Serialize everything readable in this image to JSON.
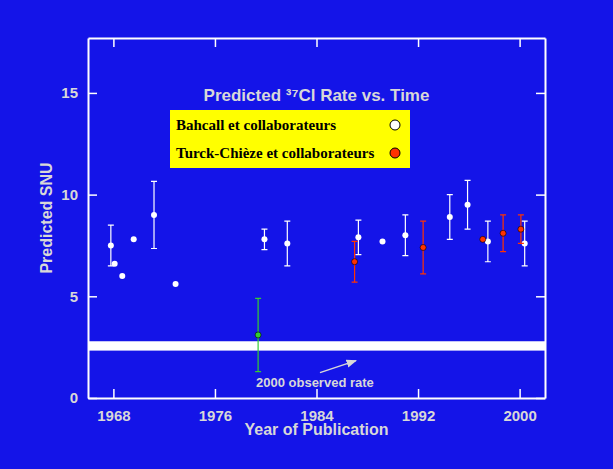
{
  "chart_data": {
    "type": "scatter",
    "title": "Predicted ³⁷Cl Rate vs. Time",
    "x_label": "Year of Publication",
    "y_label": "Predicted SNU",
    "xlim": [
      1966,
      2002
    ],
    "ylim": [
      0,
      17.7
    ],
    "xticks": [
      1968,
      1976,
      1984,
      1992,
      2000
    ],
    "yticks": [
      0,
      5,
      10,
      15
    ],
    "legend": "upper-left",
    "series": [
      {
        "name": "Bahcall et collaborateurs",
        "color": "#ffffff",
        "marker": "circle",
        "x": [
          1967.8,
          1968.1,
          1968.7,
          1969.6,
          1971.2,
          1972.9,
          1979.9,
          1981.7,
          1987.3,
          1989.2,
          1991.0,
          1994.5,
          1995.9,
          1997.5,
          2000.4
        ],
        "values": [
          7.5,
          6.6,
          6.0,
          7.8,
          9.0,
          5.6,
          7.8,
          7.6,
          7.9,
          7.7,
          8.0,
          8.9,
          9.5,
          7.7,
          7.6
        ],
        "errors": [
          1.0,
          null,
          null,
          null,
          1.65,
          null,
          0.5,
          1.1,
          0.85,
          null,
          1.0,
          1.1,
          1.2,
          1.0,
          1.1
        ]
      },
      {
        "name": "Turck-Chièze et collaborateurs",
        "color": "#ff3300",
        "marker": "circle",
        "x": [
          1987.0,
          1992.4,
          1997.1,
          1998.7,
          2000.1
        ],
        "values": [
          6.7,
          7.4,
          7.8,
          8.1,
          8.3
        ],
        "errors": [
          1.0,
          1.3,
          null,
          0.9,
          0.7
        ]
      },
      {
        "color": "#33cc33",
        "marker": "circle",
        "x": [
          1979.4
        ],
        "values": [
          3.1
        ],
        "errors": [
          1.8
        ]
      }
    ],
    "observed": {
      "label": "2000 observed rate",
      "value": 2.56,
      "error": 0.23
    }
  }
}
